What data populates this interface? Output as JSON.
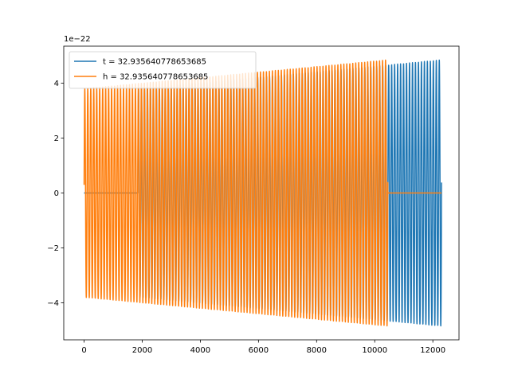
{
  "chart_data": {
    "type": "line",
    "title": "",
    "xlabel": "",
    "ylabel": "",
    "y_offset_label": "1e−22",
    "xlim": [
      -700,
      12900
    ],
    "ylim": [
      -5.35,
      5.35
    ],
    "x_ticks": [
      0,
      2000,
      4000,
      6000,
      8000,
      10000,
      12000
    ],
    "x_tick_labels": [
      "0",
      "2000",
      "4000",
      "6000",
      "8000",
      "10000",
      "12000"
    ],
    "y_ticks": [
      -4,
      -2,
      0,
      2,
      4
    ],
    "y_tick_labels": [
      "−4",
      "−2",
      "0",
      "2",
      "4"
    ],
    "grid": false,
    "legend_position": "top-left",
    "series": [
      {
        "name": "t = 32.935640778653685",
        "color": "#1f77b4",
        "signal_start": 1850,
        "signal_end": 12300,
        "amp_start": 3.8,
        "amp_end": 4.85,
        "cycles": 102
      },
      {
        "name": "h = 32.935640778653685",
        "color": "#ff7f0e",
        "signal_start": 0,
        "signal_end": 10450,
        "amp_start": 3.8,
        "amp_end": 4.85,
        "cycles": 102
      }
    ],
    "x_total_end": 12300
  }
}
